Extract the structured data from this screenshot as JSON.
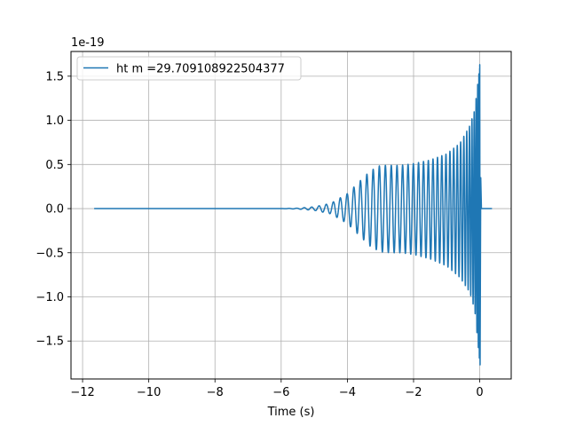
{
  "chart_data": {
    "type": "line",
    "title": "",
    "xlabel": "Time (s)",
    "ylabel": "",
    "y_offset_label": "1e-19",
    "y_scale": 1e-19,
    "xlim": [
      -12.35,
      0.95
    ],
    "ylim": [
      -1.93,
      1.78
    ],
    "xticks": [
      -12,
      -10,
      -8,
      -6,
      -4,
      -2,
      0
    ],
    "xtick_labels": [
      "−12",
      "−10",
      "−8",
      "−6",
      "−4",
      "−2",
      "0"
    ],
    "yticks": [
      -1.5,
      -1.0,
      -0.5,
      0.0,
      0.5,
      1.0,
      1.5
    ],
    "ytick_labels": [
      "−1.5",
      "−1.0",
      "−0.5",
      "0.0",
      "0.5",
      "1.0",
      "1.5"
    ],
    "grid": true,
    "legend_position": "upper-left",
    "series": [
      {
        "name": "ht m =29.709108922504377",
        "color": "#1f77b4",
        "x_range": [
          -11.65,
          0.37
        ],
        "envelope_upper": {
          "x": [
            -11.65,
            -6.0,
            -5.5,
            -5.0,
            -4.5,
            -4.0,
            -3.6,
            -3.3,
            -3.0,
            -2.7,
            -2.4,
            -2.0,
            -1.5,
            -1.0,
            -0.6,
            -0.3,
            -0.15,
            -0.05,
            0.0,
            0.05,
            0.37
          ],
          "y": [
            0.0,
            0.0,
            0.005,
            0.02,
            0.06,
            0.17,
            0.32,
            0.43,
            0.49,
            0.49,
            0.49,
            0.51,
            0.55,
            0.62,
            0.74,
            0.94,
            1.12,
            1.45,
            1.63,
            0.02,
            0.0
          ]
        },
        "envelope_lower": {
          "x": [
            -11.65,
            -6.0,
            -5.5,
            -5.0,
            -4.5,
            -4.0,
            -3.6,
            -3.3,
            -3.0,
            -2.7,
            -2.4,
            -2.0,
            -1.5,
            -1.0,
            -0.6,
            -0.3,
            -0.15,
            -0.05,
            0.0,
            0.05,
            0.37
          ],
          "y": [
            0.0,
            0.0,
            -0.005,
            -0.02,
            -0.06,
            -0.17,
            -0.32,
            -0.43,
            -0.49,
            -0.5,
            -0.5,
            -0.52,
            -0.57,
            -0.65,
            -0.78,
            -0.95,
            -1.15,
            -1.55,
            -1.77,
            -0.02,
            0.0
          ]
        }
      }
    ]
  }
}
